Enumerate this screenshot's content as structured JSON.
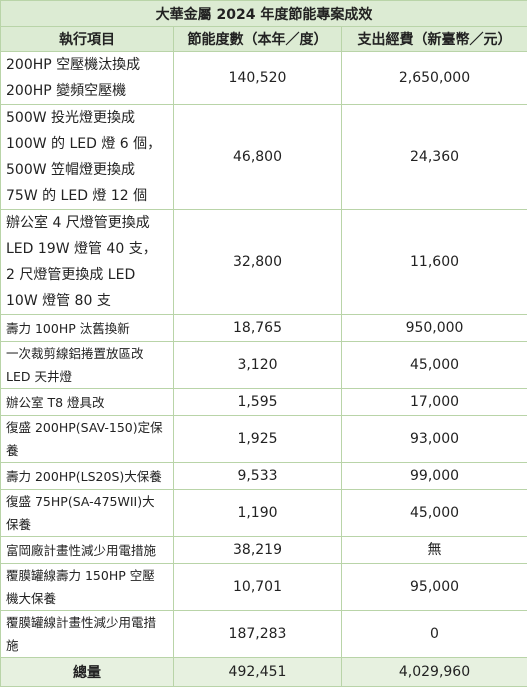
{
  "title": "大華金屬 2024 年度節能專案成效",
  "headers": [
    "執行項目",
    "節能度數（本年／度）",
    "支出經費（新臺幣／元）"
  ],
  "rows": [
    {
      "item_lines": [
        "200HP 空壓機汰換成",
        "200HP 變頻空壓機"
      ],
      "kwh": "140,520",
      "cost": "2,650,000"
    },
    {
      "item_lines": [
        "500W 投光燈更換成",
        "100W 的 LED 燈 6 個，",
        "500W 笠帽燈更換成",
        "75W 的 LED 燈 12 個"
      ],
      "kwh": "46,800",
      "cost": "24,360"
    },
    {
      "item_lines": [
        "辦公室 4 尺燈管更換成",
        "LED 19W 燈管 40 支，",
        "2 尺燈管更換成 LED",
        "10W 燈管 80 支"
      ],
      "kwh": "32,800",
      "cost": "11,600"
    },
    {
      "item_lines": [
        "壽力 100HP 汰舊換新"
      ],
      "kwh": "18,765",
      "cost": "950,000"
    },
    {
      "item_lines": [
        "一次裁剪線鋁捲置放區改",
        "LED 天井燈"
      ],
      "kwh": "3,120",
      "cost": "45,000"
    },
    {
      "item_lines": [
        "辦公室 T8 燈具改"
      ],
      "kwh": "1,595",
      "cost": "17,000"
    },
    {
      "item_lines": [
        "復盛 200HP(SAV-150)定保",
        "養"
      ],
      "kwh": "1,925",
      "cost": "93,000"
    },
    {
      "item_lines": [
        "壽力 200HP(LS20S)大保養"
      ],
      "kwh": "9,533",
      "cost": "99,000"
    },
    {
      "item_lines": [
        "復盛 75HP(SA-475WII)大",
        "保養"
      ],
      "kwh": "1,190",
      "cost": "45,000"
    },
    {
      "item_lines": [
        "富岡廠計畫性減少用電措施"
      ],
      "kwh": "38,219",
      "cost": "無"
    },
    {
      "item_lines": [
        "覆膜罐線壽力 150HP 空壓",
        "機大保養"
      ],
      "kwh": "10,701",
      "cost": "95,000"
    },
    {
      "item_lines": [
        "覆膜罐線計畫性減少用電措",
        "施"
      ],
      "kwh": "187,283",
      "cost": "0"
    }
  ],
  "total": {
    "label": "總量",
    "kwh": "492,451",
    "cost": "4,029,960"
  }
}
